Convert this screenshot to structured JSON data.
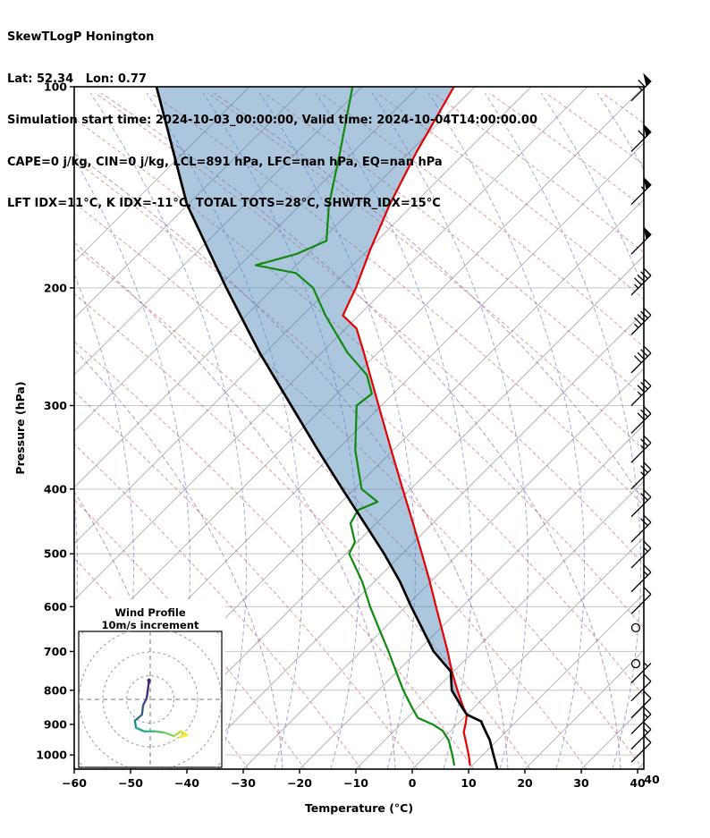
{
  "header": {
    "title": "SkewTLogP Honington",
    "location": "Lat: 52.34   Lon: 0.77",
    "times": "Simulation start time: 2024-10-03_00:00:00, Valid time: 2024-10-04T14:00:00.00",
    "stability_line1": "CAPE=0 j/kg, CIN=0 j/kg, LCL=891 hPa, LFC=nan hPa, EQ=nan hPa",
    "stability_line2": "LFT IDX=11°C, K IDX=-11°C, TOTAL TOTS=28°C, SHWTR_IDX=15°C"
  },
  "chart_data": {
    "type": "skewt-logp",
    "title": "SkewTLogP Honington",
    "skew_deg": 45,
    "x_axis": {
      "label": "Temperature (°C)",
      "min": -60,
      "max": 41.1,
      "tick_values": [
        -60,
        -50,
        -40,
        -30,
        -20,
        -10,
        0,
        10,
        20,
        30,
        40
      ],
      "tick_labels": [
        "−60",
        "−50",
        "−40",
        "−30",
        "−20",
        "−10",
        "0",
        "10",
        "20",
        "30",
        "40"
      ],
      "extra_right_label": "40"
    },
    "y_axis": {
      "label": "Pressure (hPa)",
      "scale": "log",
      "top": 100,
      "bottom": 1050,
      "tick_values": [
        100,
        200,
        300,
        400,
        500,
        600,
        700,
        800,
        900,
        1000
      ],
      "tick_labels": [
        "100",
        "200",
        "300",
        "400",
        "500",
        "600",
        "700",
        "800",
        "900",
        "1000"
      ]
    },
    "background": {
      "grid_color": "#c6c6c6",
      "isotherms": {
        "color": "#b3b3b3",
        "step_c": 10
      },
      "dry_adiabats": {
        "color": "rgba(205,70,70,0.55)"
      },
      "moist_adiabats": {
        "color": "rgba(60,90,205,0.5)"
      },
      "cold_moist_adiabats": {
        "color": "rgba(150,80,170,0.6)"
      }
    },
    "series": {
      "temperature": {
        "name": "temperature",
        "color": "#e60000",
        "points": [
          [
            1035,
            9.5
          ],
          [
            1000,
            7.5
          ],
          [
            950,
            4.3
          ],
          [
            925,
            2.6
          ],
          [
            900,
            1.5
          ],
          [
            870,
            0.0
          ],
          [
            850,
            -1.8
          ],
          [
            800,
            -6.0
          ],
          [
            750,
            -10.3
          ],
          [
            700,
            -14.6
          ],
          [
            650,
            -19.4
          ],
          [
            600,
            -24.6
          ],
          [
            550,
            -30.2
          ],
          [
            500,
            -36.5
          ],
          [
            450,
            -43.5
          ],
          [
            400,
            -51.4
          ],
          [
            350,
            -60.3
          ],
          [
            300,
            -70.5
          ],
          [
            250,
            -82.5
          ],
          [
            230,
            -88.1
          ],
          [
            220,
            -92.8
          ],
          [
            210,
            -94.1
          ],
          [
            200,
            -95.4
          ],
          [
            175,
            -99.7
          ],
          [
            150,
            -104.2
          ],
          [
            125,
            -108.8
          ],
          [
            100,
            -113.7
          ]
        ]
      },
      "dewpoint": {
        "name": "dewpoint",
        "color": "#0f8a0f",
        "points": [
          [
            1035,
            6.7
          ],
          [
            1000,
            4.6
          ],
          [
            950,
            1.3
          ],
          [
            920,
            -1.4
          ],
          [
            900,
            -4.3
          ],
          [
            880,
            -8.1
          ],
          [
            850,
            -10.9
          ],
          [
            800,
            -15.6
          ],
          [
            750,
            -20.2
          ],
          [
            700,
            -25.1
          ],
          [
            650,
            -30.5
          ],
          [
            600,
            -36.3
          ],
          [
            550,
            -42.2
          ],
          [
            500,
            -49.4
          ],
          [
            480,
            -50.5
          ],
          [
            450,
            -54.6
          ],
          [
            430,
            -55.6
          ],
          [
            418,
            -53.6
          ],
          [
            400,
            -58.7
          ],
          [
            350,
            -66.7
          ],
          [
            300,
            -74.4
          ],
          [
            288,
            -73.8
          ],
          [
            270,
            -78.0
          ],
          [
            250,
            -85.4
          ],
          [
            220,
            -95.9
          ],
          [
            200,
            -103.0
          ],
          [
            190,
            -108.7
          ],
          [
            185,
            -117.2
          ],
          [
            178,
            -112.0
          ],
          [
            170,
            -109.0
          ],
          [
            150,
            -115.0
          ],
          [
            125,
            -122.4
          ],
          [
            100,
            -131.7
          ]
        ]
      },
      "parcel": {
        "name": "parcel",
        "color": "#000000",
        "points": [
          [
            1050,
            15.1
          ],
          [
            1000,
            11.9
          ],
          [
            950,
            8.6
          ],
          [
            900,
            4.5
          ],
          [
            891,
            3.8
          ],
          [
            870,
            0.0
          ],
          [
            850,
            -2.0
          ],
          [
            800,
            -7.0
          ],
          [
            750,
            -10.5
          ],
          [
            700,
            -17.1
          ],
          [
            650,
            -22.8
          ],
          [
            600,
            -29.0
          ],
          [
            550,
            -35.5
          ],
          [
            500,
            -43.2
          ],
          [
            450,
            -52.1
          ],
          [
            400,
            -62.1
          ],
          [
            350,
            -73.3
          ],
          [
            300,
            -86.0
          ],
          [
            250,
            -101.0
          ],
          [
            200,
            -118.4
          ],
          [
            150,
            -140.2
          ],
          [
            100,
            -166.5
          ]
        ]
      },
      "cin_shade": {
        "color": "rgba(70,130,180,0.45)",
        "between": [
          "parcel",
          "temperature"
        ],
        "p_from": 870,
        "p_to": 100
      }
    },
    "wind_barbs": {
      "unit": "kt",
      "levels": [
        [
          105,
          65
        ],
        [
          125,
          60
        ],
        [
          150,
          55
        ],
        [
          178,
          50
        ],
        [
          205,
          45
        ],
        [
          235,
          45
        ],
        [
          268,
          40
        ],
        [
          300,
          35
        ],
        [
          330,
          30
        ],
        [
          365,
          25
        ],
        [
          400,
          25
        ],
        [
          440,
          20
        ],
        [
          480,
          20
        ],
        [
          525,
          15
        ],
        [
          570,
          15
        ],
        [
          615,
          10
        ],
        [
          645,
          0
        ],
        [
          730,
          0
        ],
        [
          780,
          5
        ],
        [
          830,
          10
        ],
        [
          880,
          10
        ],
        [
          930,
          15
        ],
        [
          980,
          15
        ],
        [
          1025,
          10
        ]
      ]
    },
    "hodograph": {
      "title_line1": "Wind Profile",
      "title_line2": "10m/s increment",
      "ring_interval_ms": 10,
      "rings": [
        10,
        20,
        30,
        40
      ],
      "trace_uv_ms": [
        [
          -0.5,
          8
        ],
        [
          -1,
          4
        ],
        [
          -1.5,
          0.5
        ],
        [
          -3,
          -2.5
        ],
        [
          -3.5,
          -6.5
        ],
        [
          -6.5,
          -9
        ],
        [
          -6,
          -12
        ],
        [
          -2.5,
          -13.5
        ],
        [
          2,
          -13.5
        ],
        [
          6,
          -14
        ],
        [
          10,
          -15.5
        ],
        [
          13,
          -13.5
        ],
        [
          15.5,
          -15
        ],
        [
          12.5,
          -16
        ]
      ],
      "trace_colors": [
        "#46237a",
        "#46237a",
        "#414487",
        "#38568b",
        "#2e6e8e",
        "#27848e",
        "#21a585",
        "#2cb17e",
        "#54c568",
        "#7ad151",
        "#a5db36",
        "#dfe318",
        "#fde725"
      ]
    }
  }
}
